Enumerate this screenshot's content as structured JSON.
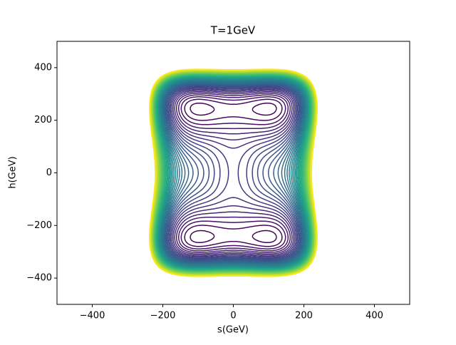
{
  "chart_data": {
    "type": "contour",
    "title": "T=1GeV",
    "xlabel": "s(GeV)",
    "ylabel": "h(GeV)",
    "xlim": [
      -500,
      500
    ],
    "ylim": [
      -500,
      500
    ],
    "xticks": [
      {
        "value": -400,
        "label": "−400"
      },
      {
        "value": -200,
        "label": "−200"
      },
      0,
      200,
      400
    ],
    "yticks": [
      {
        "value": -400,
        "label": "−400"
      },
      {
        "value": -200,
        "label": "−200"
      },
      0,
      200,
      400
    ],
    "colormap": "viridis"
  }
}
